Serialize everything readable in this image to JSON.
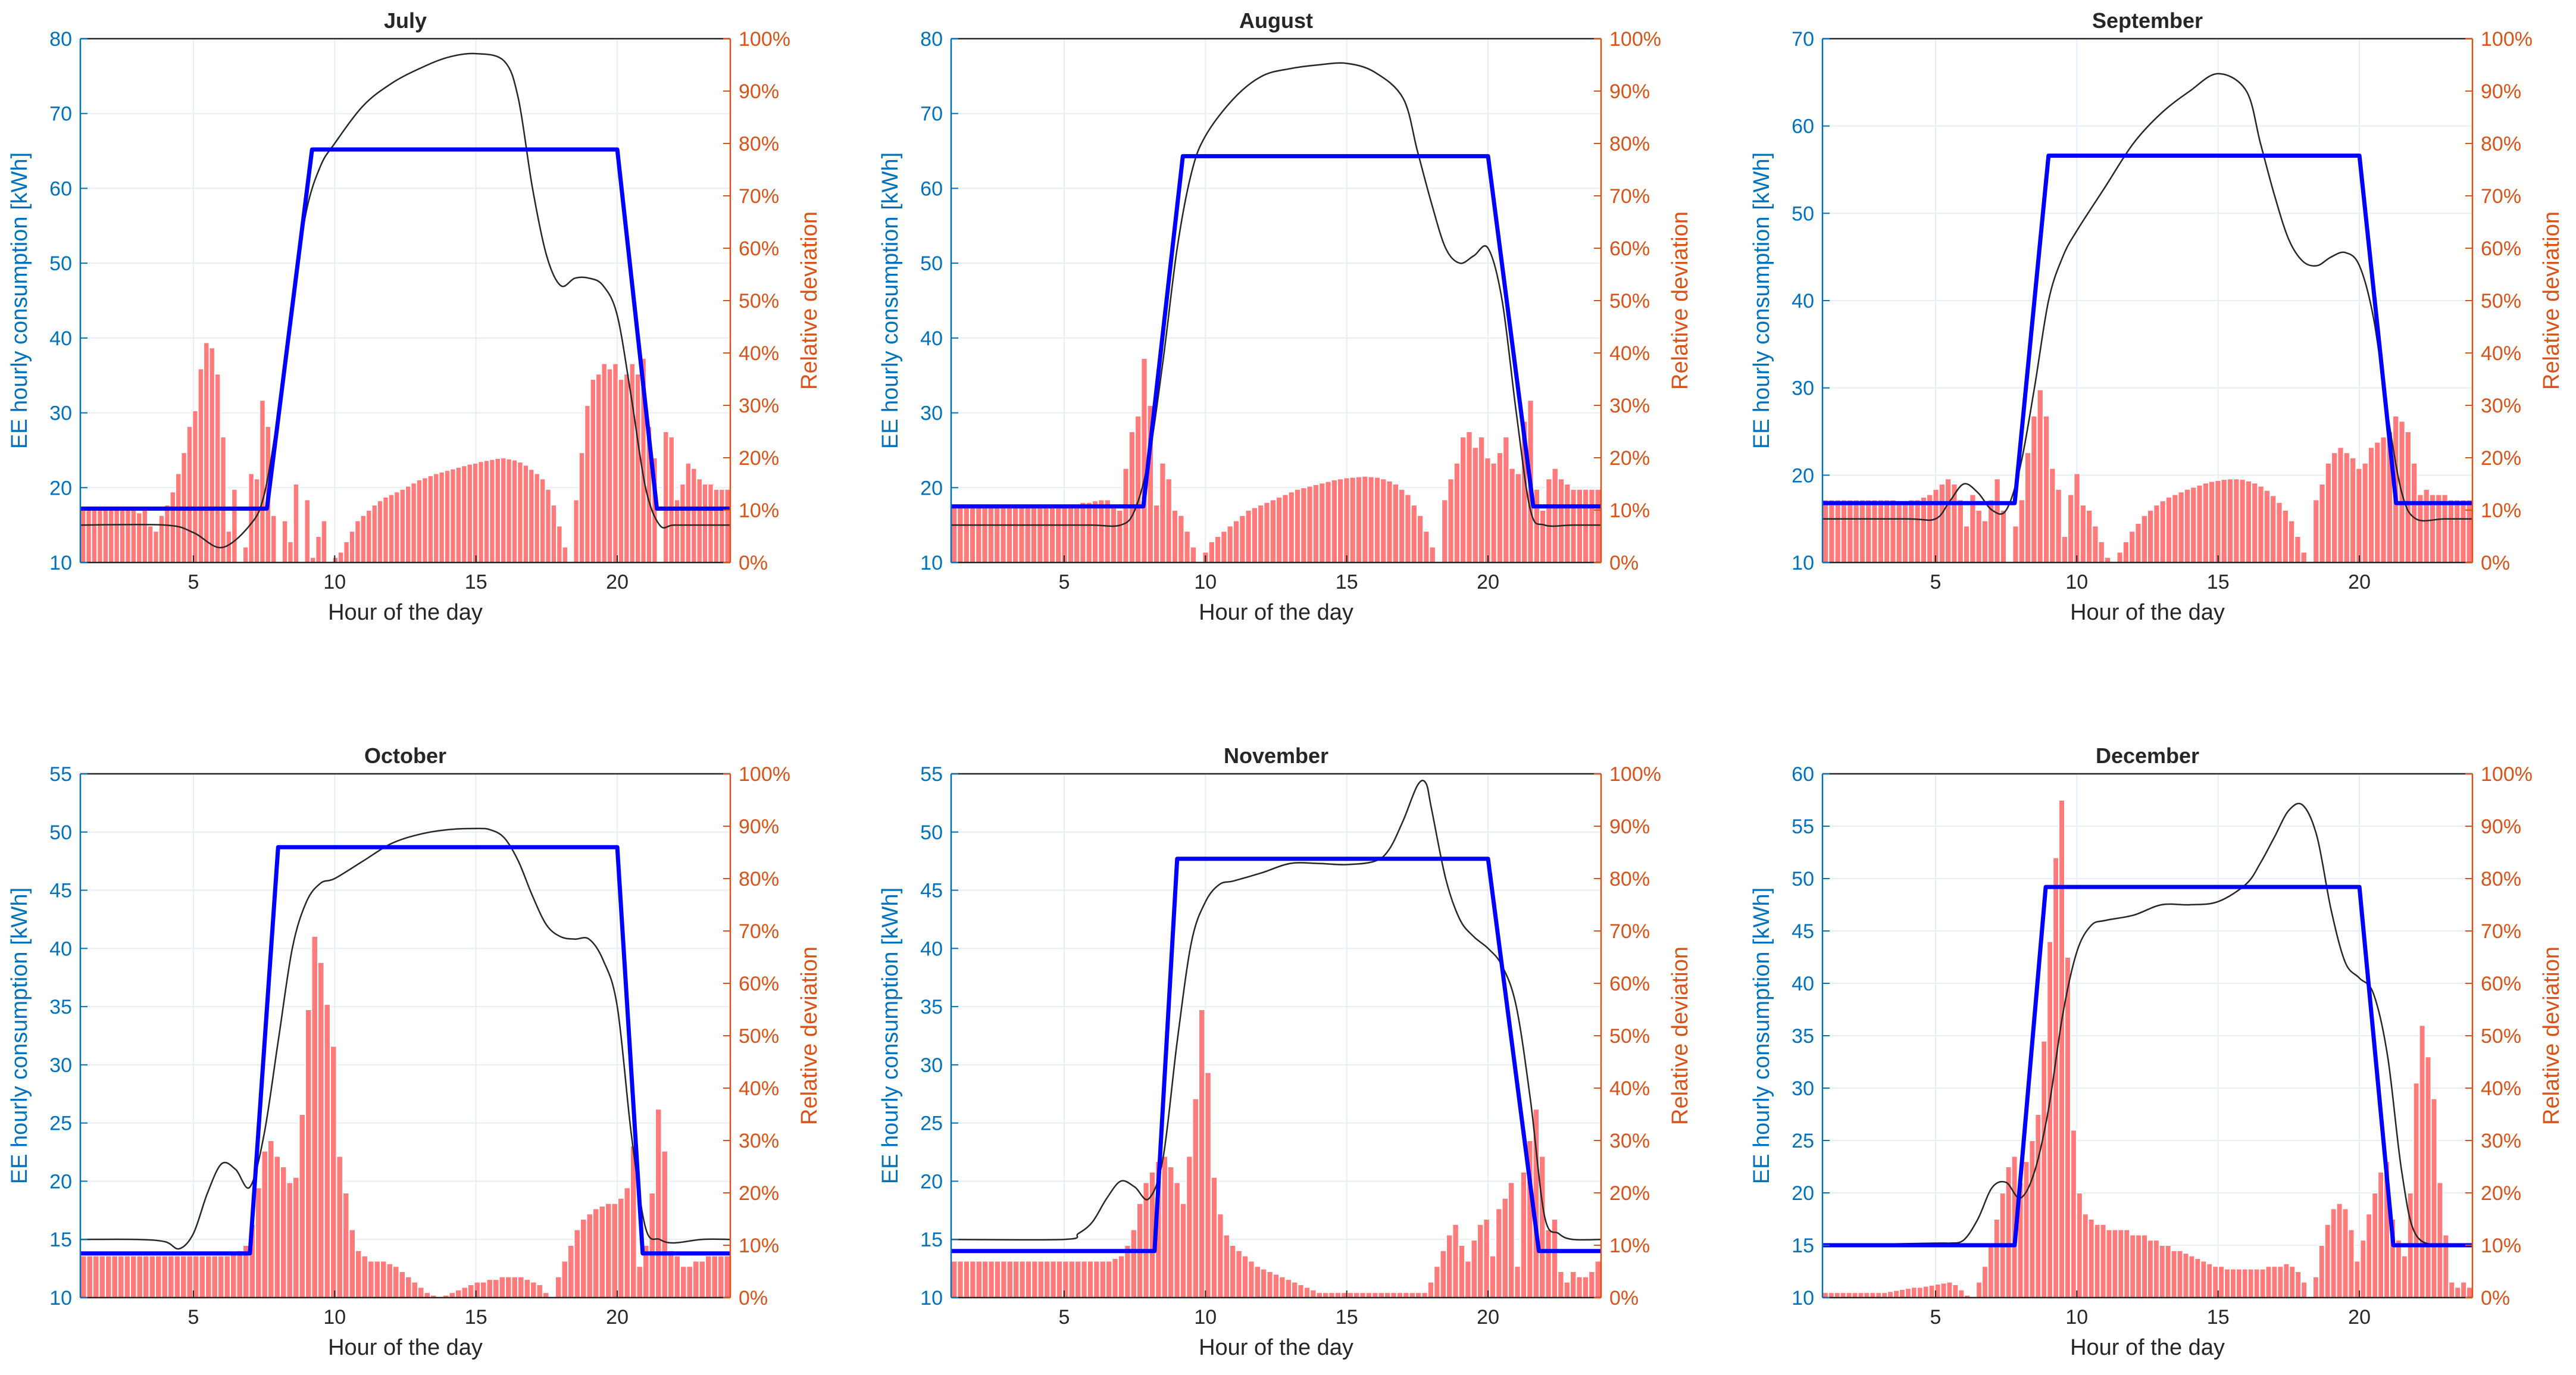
{
  "figure": {
    "ylabel_left": "EE hourly consumption [kWh]",
    "ylabel_right": "Relative deviation",
    "xlabel": "Hour of the day",
    "xticks": [
      5,
      10,
      15,
      20
    ],
    "right_ticks": [
      "0%",
      "10%",
      "20%",
      "30%",
      "40%",
      "50%",
      "60%",
      "70%",
      "80%",
      "90%",
      "100%"
    ],
    "colors": {
      "left_axis": "#0072BD",
      "right_axis": "#D95319",
      "bars": "#FF7B7B",
      "bar_edge": "#FFFFFF",
      "step_line": "#0000FF",
      "smooth_line": "#262626",
      "grid": "#E6EEF5",
      "axes": "#262626"
    }
  },
  "chart_data": [
    {
      "title": "July",
      "type": "bar+line",
      "ylim": [
        10,
        80
      ],
      "yticks": [
        10,
        20,
        30,
        40,
        50,
        60,
        70,
        80
      ],
      "xlim": [
        1,
        24
      ],
      "step_profile": {
        "base": 17.2,
        "peak": 65.2,
        "rise_start": 7.6,
        "rise_end": 9.2,
        "fall_start": 20.0,
        "fall_end": 21.4
      },
      "smooth_curve": {
        "x": [
          1,
          4,
          5,
          6,
          7,
          7.5,
          8,
          8.5,
          9,
          9.5,
          10,
          11,
          12,
          13,
          14,
          15,
          16,
          16.5,
          17,
          17.5,
          18,
          18.5,
          19,
          19.5,
          20,
          20.5,
          21,
          21.5,
          22,
          23,
          24
        ],
        "y": [
          15,
          15,
          14,
          12,
          15,
          19,
          30,
          45,
          57,
          63,
          66,
          71,
          74,
          76,
          77.5,
          78,
          77,
          72,
          60,
          51,
          47,
          48,
          48,
          47,
          43,
          32,
          20,
          15,
          15,
          15,
          15
        ]
      },
      "relative_deviation_pct": [
        10,
        10,
        10,
        10,
        10,
        10,
        10,
        10,
        10,
        10,
        9.5,
        10,
        7,
        6,
        9,
        11,
        13.5,
        17,
        21,
        26,
        29,
        37,
        42,
        41,
        36,
        24,
        6,
        14,
        0,
        3,
        17,
        16,
        31,
        26,
        9,
        0,
        8,
        4,
        15,
        0,
        12,
        1,
        5,
        8,
        0,
        1,
        2,
        4,
        6,
        8,
        9,
        10,
        11,
        11.8,
        12.5,
        13,
        13.5,
        14,
        14.6,
        15.2,
        15.8,
        16.2,
        16.6,
        17,
        17.3,
        17.6,
        17.9,
        18.2,
        18.5,
        18.8,
        19,
        19.3,
        19.5,
        19.7,
        19.9,
        20,
        19.8,
        19.6,
        19.2,
        18.6,
        17.8,
        17,
        16,
        14,
        11,
        7,
        3,
        0,
        12,
        21,
        30,
        35,
        36,
        38,
        37,
        38,
        35,
        36,
        38,
        36,
        39,
        26,
        20,
        0,
        25,
        24,
        12,
        15,
        19,
        18,
        16,
        15,
        15,
        14,
        14,
        14
      ]
    },
    {
      "title": "August",
      "type": "bar+line",
      "ylim": [
        10,
        80
      ],
      "yticks": [
        10,
        20,
        30,
        40,
        50,
        60,
        70,
        80
      ],
      "xlim": [
        1,
        24
      ],
      "step_profile": {
        "base": 17.5,
        "peak": 64.3,
        "rise_start": 7.8,
        "rise_end": 9.2,
        "fall_start": 20.0,
        "fall_end": 21.6
      },
      "smooth_curve": {
        "x": [
          1,
          5,
          6,
          7,
          7.5,
          8,
          8.5,
          9,
          9.5,
          10,
          11,
          12,
          13,
          14,
          15,
          16,
          17,
          17.5,
          18,
          18.5,
          19,
          19.5,
          20,
          20.5,
          21,
          21.5,
          22,
          23,
          24
        ],
        "y": [
          15,
          15,
          15,
          15,
          17,
          24,
          37,
          52,
          62,
          67,
          72,
          75,
          76,
          76.5,
          76.7,
          75.5,
          72,
          65,
          58,
          52,
          50,
          51,
          52,
          45,
          30,
          17,
          15,
          15,
          15
        ]
      },
      "relative_deviation_pct": [
        11,
        11,
        11,
        11,
        11,
        11,
        11,
        11,
        11,
        11,
        11,
        11,
        11,
        11,
        11,
        11,
        11,
        11,
        11,
        11,
        11,
        11.5,
        11.5,
        11.8,
        12,
        12,
        11,
        10,
        18,
        25,
        28,
        39,
        30,
        11,
        19,
        16,
        10,
        9,
        6,
        3,
        0,
        2,
        4,
        5,
        6,
        7,
        8,
        9,
        10,
        10.5,
        11,
        11.5,
        12,
        12.5,
        13,
        13.5,
        14,
        14.3,
        14.6,
        14.9,
        15.2,
        15.5,
        15.8,
        16,
        16.2,
        16.3,
        16.4,
        16.5,
        16.4,
        16.3,
        16,
        15.6,
        15,
        14,
        13,
        11,
        9,
        6,
        3,
        0,
        12,
        16,
        19,
        24,
        25,
        22,
        24,
        20,
        19,
        21,
        24,
        18,
        17,
        27,
        31,
        14,
        10,
        16,
        18,
        16,
        15,
        14,
        14,
        14,
        14,
        14
      ]
    },
    {
      "title": "September",
      "type": "bar+line",
      "ylim": [
        10,
        70
      ],
      "yticks": [
        10,
        20,
        30,
        40,
        50,
        60,
        70
      ],
      "xlim": [
        1,
        24
      ],
      "step_profile": {
        "base": 16.8,
        "peak": 56.6,
        "rise_start": 7.8,
        "rise_end": 9.0,
        "fall_start": 20.0,
        "fall_end": 21.3
      },
      "smooth_curve": {
        "x": [
          1,
          4,
          5,
          5.5,
          6,
          6.5,
          7,
          7.5,
          8,
          8.5,
          9,
          9.5,
          10,
          11,
          12,
          13,
          14,
          15,
          16,
          16.5,
          17,
          17.5,
          18,
          18.5,
          19,
          19.5,
          20,
          20.5,
          21,
          21.5,
          22,
          23,
          24
        ],
        "y": [
          15,
          15,
          15,
          17,
          19,
          18,
          16,
          16,
          21,
          30,
          40,
          45,
          48,
          53,
          58,
          61.5,
          64,
          66,
          64,
          58,
          52,
          47,
          44.5,
          44,
          45,
          45.5,
          44,
          38,
          27,
          18,
          15,
          15,
          15
        ]
      },
      "relative_deviation_pct": [
        12,
        12,
        12,
        12,
        12,
        12,
        12,
        12,
        12,
        12,
        12,
        12,
        11.5,
        11.5,
        12,
        12,
        12.5,
        13,
        14,
        15,
        16,
        15,
        12,
        7,
        13,
        10,
        8,
        12,
        16,
        10,
        0,
        7,
        12,
        21,
        28,
        33,
        28,
        18,
        14,
        5,
        13,
        17,
        11,
        10,
        7,
        4,
        1,
        0,
        2,
        4,
        6,
        7.5,
        9,
        10,
        11,
        11.8,
        12.5,
        13,
        13.5,
        14,
        14.4,
        14.8,
        15.2,
        15.5,
        15.7,
        15.9,
        16,
        16,
        15.9,
        15.6,
        15.2,
        14.6,
        13.8,
        12.8,
        11.5,
        10,
        8,
        5,
        2,
        0,
        12,
        15,
        19,
        21,
        22,
        21,
        20,
        18,
        19,
        22,
        23,
        24,
        25,
        28,
        27,
        25,
        19,
        13,
        14,
        13,
        13,
        13,
        12,
        12,
        12,
        12
      ]
    },
    {
      "title": "October",
      "type": "bar+line",
      "ylim": [
        10,
        55
      ],
      "yticks": [
        10,
        15,
        20,
        25,
        30,
        35,
        40,
        45,
        50,
        55
      ],
      "xlim": [
        1,
        24
      ],
      "step_profile": {
        "base": 13.8,
        "peak": 48.7,
        "rise_start": 7.0,
        "rise_end": 8.0,
        "fall_start": 20.0,
        "fall_end": 20.9
      },
      "smooth_curve": {
        "x": [
          1,
          3,
          4,
          4.5,
          5,
          5.5,
          6,
          6.5,
          7,
          7.5,
          8,
          8.5,
          9,
          9.5,
          10,
          11,
          12,
          13,
          14,
          15,
          15.5,
          16,
          16.5,
          17,
          17.5,
          18,
          18.5,
          19,
          19.5,
          20,
          20.5,
          21,
          21.5,
          22,
          23,
          24
        ],
        "y": [
          15,
          15,
          14.8,
          14.2,
          15.5,
          19,
          21.5,
          21,
          19.5,
          24,
          32,
          40,
          44,
          45.6,
          46,
          47.5,
          49,
          49.8,
          50.2,
          50.3,
          50.2,
          49.5,
          47.5,
          44.5,
          42,
          41,
          40.8,
          40.8,
          39,
          35,
          24,
          16,
          15,
          14.7,
          15,
          15
        ]
      },
      "relative_deviation_pct": [
        8,
        8,
        8,
        8,
        8,
        8,
        8,
        8,
        8,
        8,
        8,
        8,
        8,
        8,
        8,
        8,
        8,
        8,
        8,
        8,
        8,
        8,
        8,
        8,
        8.5,
        9,
        10,
        14,
        21,
        28,
        30,
        27,
        25,
        22,
        23,
        35,
        55,
        69,
        64,
        56,
        48,
        27,
        20,
        13,
        9,
        8,
        7,
        7,
        7,
        6.5,
        6,
        5,
        4,
        3,
        2,
        1,
        0.5,
        0,
        0.5,
        1,
        1.5,
        2,
        2.5,
        3,
        3,
        3.5,
        3.5,
        4,
        4,
        4,
        4,
        3.5,
        3,
        2.5,
        1,
        0,
        4,
        7,
        10,
        13,
        15,
        16,
        17,
        17.5,
        18,
        18,
        19,
        21,
        29,
        6,
        10,
        20,
        36,
        28,
        9,
        8,
        6,
        6,
        7,
        7,
        8,
        8,
        8,
        8
      ]
    },
    {
      "title": "November",
      "type": "bar+line",
      "ylim": [
        10,
        55
      ],
      "yticks": [
        10,
        15,
        20,
        25,
        30,
        35,
        40,
        45,
        50,
        55
      ],
      "xlim": [
        1,
        24
      ],
      "step_profile": {
        "base": 14.0,
        "peak": 47.7,
        "rise_start": 8.2,
        "rise_end": 9.0,
        "fall_start": 20.0,
        "fall_end": 21.8
      },
      "smooth_curve": {
        "x": [
          1,
          5,
          5.5,
          6,
          6.5,
          7,
          7.5,
          8,
          8.5,
          9,
          9.5,
          10,
          10.5,
          11,
          12,
          13,
          14,
          15,
          16,
          16.5,
          17,
          17.5,
          17.8,
          18,
          18.5,
          19,
          19.5,
          20,
          20.5,
          21,
          21.5,
          22,
          22.5,
          23,
          24
        ],
        "y": [
          15,
          15,
          15.5,
          16.5,
          18.5,
          20,
          19.5,
          18.5,
          22,
          32,
          40.5,
          44,
          45.5,
          45.8,
          46.5,
          47.3,
          47.3,
          47.2,
          47.5,
          48.5,
          51,
          54,
          54.2,
          52,
          46,
          42.5,
          41,
          40,
          38.5,
          35,
          27,
          17,
          15.5,
          15,
          15
        ]
      },
      "relative_deviation_pct": [
        7,
        7,
        7,
        7,
        7,
        7,
        7,
        7,
        7,
        7,
        7,
        7,
        7,
        7,
        7,
        7,
        7,
        7,
        7,
        7,
        7,
        7,
        7,
        7,
        7,
        7,
        7.5,
        8,
        10,
        13,
        18,
        22,
        24,
        26,
        27,
        25,
        22,
        18,
        27,
        38,
        55,
        43,
        23,
        16,
        12,
        10,
        9,
        8,
        7,
        6,
        5.5,
        5,
        4.5,
        4,
        3.5,
        3,
        2.5,
        2,
        1.5,
        1,
        1,
        1,
        1,
        1,
        1,
        1,
        1,
        1,
        1,
        1,
        1,
        1,
        1,
        1,
        1,
        1,
        1,
        3,
        6,
        9,
        12,
        14,
        10,
        7,
        11,
        14,
        15,
        8,
        17,
        19,
        22,
        6,
        24,
        30,
        36,
        27,
        13,
        15,
        5,
        3,
        5,
        4,
        4,
        5,
        7
      ]
    },
    {
      "title": "December",
      "type": "bar+line",
      "ylim": [
        10,
        60
      ],
      "yticks": [
        10,
        15,
        20,
        25,
        30,
        35,
        40,
        45,
        50,
        55,
        60
      ],
      "xlim": [
        1,
        24
      ],
      "step_profile": {
        "base": 15.0,
        "peak": 49.2,
        "rise_start": 7.8,
        "rise_end": 8.9,
        "fall_start": 20.0,
        "fall_end": 21.2
      },
      "smooth_curve": {
        "x": [
          1,
          5,
          5.5,
          6,
          6.5,
          7,
          7.5,
          8,
          8.5,
          9,
          9.5,
          10,
          10.5,
          11,
          12,
          13,
          14,
          15,
          16,
          16.5,
          17,
          17.5,
          18,
          18.5,
          19,
          19.5,
          20,
          20.5,
          21,
          21.5,
          22,
          23,
          24
        ],
        "y": [
          15,
          15.2,
          15.2,
          15.5,
          17.5,
          20.5,
          21,
          19.5,
          22,
          28,
          37,
          43,
          45.5,
          46,
          46.5,
          47.5,
          47.5,
          47.8,
          49.5,
          51.5,
          54,
          56.5,
          57,
          54,
          47,
          42,
          40.5,
          39,
          33,
          22,
          16,
          15,
          15
        ]
      },
      "relative_deviation_pct": [
        1,
        1,
        1,
        1,
        1,
        1,
        1,
        1,
        1,
        1,
        1,
        1.2,
        1.4,
        1.6,
        1.8,
        2,
        2,
        2.2,
        2.4,
        2.6,
        2.8,
        3,
        2.5,
        1.5,
        0.5,
        0,
        3,
        6,
        10,
        15,
        20,
        25,
        27,
        22,
        26,
        30,
        35,
        49,
        68,
        84,
        95,
        65,
        32,
        20,
        16,
        15,
        14,
        14,
        13,
        13,
        13,
        13,
        12,
        12,
        12,
        11,
        11,
        10,
        10,
        9,
        9,
        8.5,
        8,
        7.5,
        7,
        6.5,
        6,
        6,
        5.5,
        5.5,
        5.5,
        5.5,
        5.5,
        5.5,
        5.5,
        6,
        6,
        6,
        6.5,
        6,
        5,
        3,
        0,
        4,
        10,
        14,
        17,
        18,
        17,
        13,
        7,
        11,
        16,
        20,
        24,
        26,
        15,
        11,
        8,
        20,
        41,
        52,
        46,
        38,
        22,
        12,
        3,
        2,
        3,
        2
      ]
    }
  ]
}
